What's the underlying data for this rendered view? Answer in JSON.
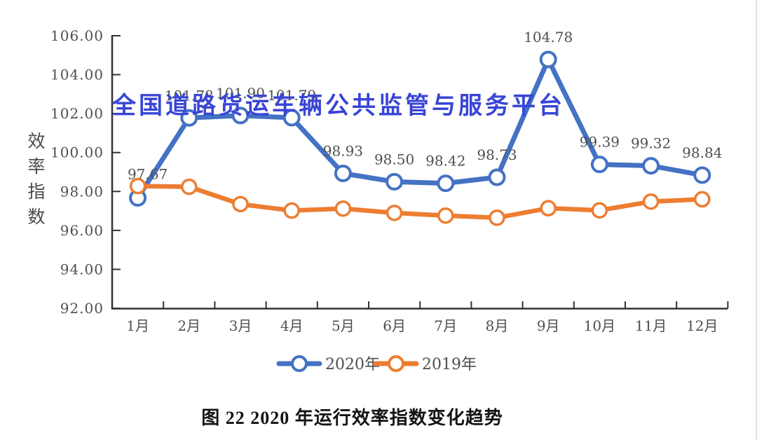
{
  "watermark": {
    "text": "全国道路货运车辆公共监管与服务平台",
    "color": "#3845d6"
  },
  "caption": {
    "text": "图 22 2020 年运行效率指数变化趋势"
  },
  "chart_data": {
    "type": "line",
    "title": "",
    "xlabel": "",
    "ylabel": "效率指数",
    "ylim": [
      92,
      106
    ],
    "ytick_step": 2,
    "yticks": [
      "92.00",
      "94.00",
      "96.00",
      "98.00",
      "100.00",
      "102.00",
      "104.00",
      "106.00"
    ],
    "grid": false,
    "legend_position": "bottom",
    "categories": [
      "1月",
      "2月",
      "3月",
      "4月",
      "5月",
      "6月",
      "7月",
      "8月",
      "9月",
      "10月",
      "11月",
      "12月"
    ],
    "series": [
      {
        "name": "2020年",
        "color": "#4472C4",
        "values": [
          97.67,
          101.78,
          101.9,
          101.79,
          98.93,
          98.5,
          98.42,
          98.73,
          104.78,
          99.39,
          99.32,
          98.84
        ],
        "labels": [
          "97.67",
          "101.78",
          "101.90",
          "101.79",
          "98.93",
          "98.50",
          "98.42",
          "98.73",
          "104.78",
          "99.39",
          "99.32",
          "98.84"
        ]
      },
      {
        "name": "2019年",
        "color": "#ED7D31",
        "values": [
          98.28,
          98.24,
          97.35,
          97.02,
          97.12,
          96.9,
          96.76,
          96.65,
          97.14,
          97.03,
          97.48,
          97.6
        ],
        "labels": [
          "",
          "",
          "",
          "",
          "",
          "",
          "",
          "",
          "",
          "",
          "",
          ""
        ]
      }
    ]
  }
}
